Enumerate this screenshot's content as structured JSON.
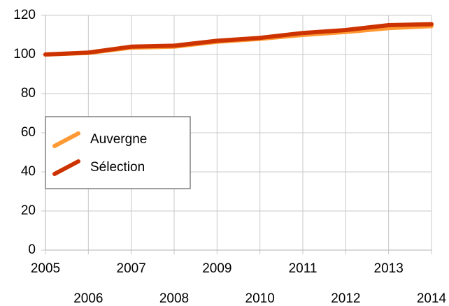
{
  "chart_data": {
    "type": "line",
    "x": [
      2005,
      2006,
      2007,
      2008,
      2009,
      2010,
      2011,
      2012,
      2013,
      2014
    ],
    "xlim": [
      2005,
      2014
    ],
    "xticks": [
      2005,
      2006,
      2007,
      2008,
      2009,
      2010,
      2011,
      2012,
      2013,
      2014
    ],
    "ylim": [
      0,
      120
    ],
    "yticks": [
      0,
      20,
      40,
      60,
      80,
      100,
      120
    ],
    "grid": true,
    "legend": "left",
    "series": [
      {
        "name": "Auvergne",
        "color": "#ff9933",
        "values": [
          100,
          100.8,
          103.5,
          104,
          106.5,
          108,
          110,
          111.5,
          113.5,
          114.5
        ]
      },
      {
        "name": "Sélection",
        "color": "#cc3300",
        "values": [
          100,
          101,
          104,
          104.5,
          107,
          108.5,
          111,
          112.5,
          115,
          115.5
        ]
      }
    ]
  }
}
